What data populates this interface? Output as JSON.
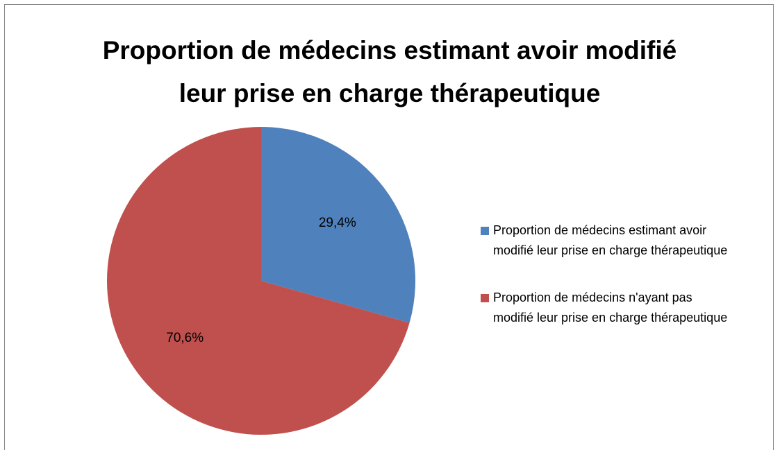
{
  "chart_data": {
    "type": "pie",
    "title": "Proportion de médecins estimant avoir modifié leur prise en charge thérapeutique",
    "categories": [
      "Proportion de médecins estimant avoir modifié leur prise en charge thérapeutique",
      "Proportion de médecins n'ayant pas modifié leur prise en charge thérapeutique"
    ],
    "values": [
      29.4,
      70.6
    ],
    "value_labels": [
      "29,4%",
      "70,6%"
    ],
    "colors": [
      "#4f81bd",
      "#c0504d"
    ],
    "legend": "right"
  }
}
